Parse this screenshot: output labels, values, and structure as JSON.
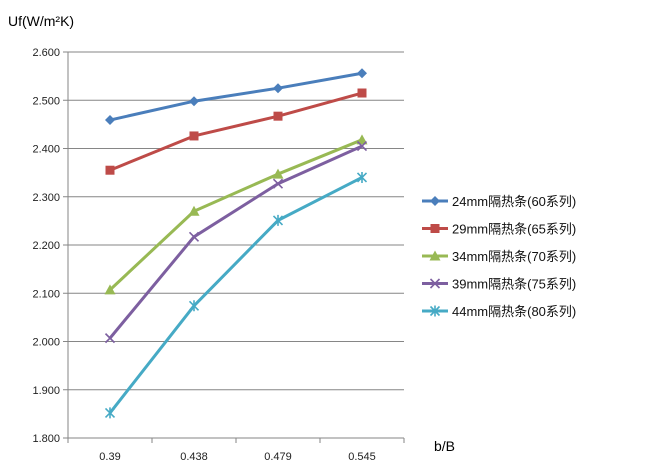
{
  "chart_data": {
    "type": "line",
    "title": "",
    "ylabel": "Uf(W/m²K)",
    "xlabel": "b/B",
    "categories": [
      "0.39",
      "0.438",
      "0.479",
      "0.545"
    ],
    "ylim": [
      1.8,
      2.6
    ],
    "yticks": [
      "1.800",
      "1.900",
      "2.000",
      "2.100",
      "2.200",
      "2.300",
      "2.400",
      "2.500",
      "2.600"
    ],
    "grid": "horizontal",
    "legend_position": "right",
    "series": [
      {
        "name": "24mm隔热条(60系列)",
        "values": [
          2.459,
          2.498,
          2.525,
          2.556
        ],
        "color": "#4a7ebb",
        "marker": "diamond"
      },
      {
        "name": "29mm隔热条(65系列)",
        "values": [
          2.355,
          2.426,
          2.467,
          2.515
        ],
        "color": "#be4b48",
        "marker": "square"
      },
      {
        "name": "34mm隔热条(70系列)",
        "values": [
          2.107,
          2.27,
          2.347,
          2.418
        ],
        "color": "#98b954",
        "marker": "triangle"
      },
      {
        "name": "39mm隔热条(75系列)",
        "values": [
          2.007,
          2.217,
          2.327,
          2.405
        ],
        "color": "#7d5fa0",
        "marker": "x"
      },
      {
        "name": "44mm隔热条(80系列)",
        "values": [
          1.852,
          2.074,
          2.251,
          2.34
        ],
        "color": "#46aac5",
        "marker": "star"
      }
    ]
  }
}
